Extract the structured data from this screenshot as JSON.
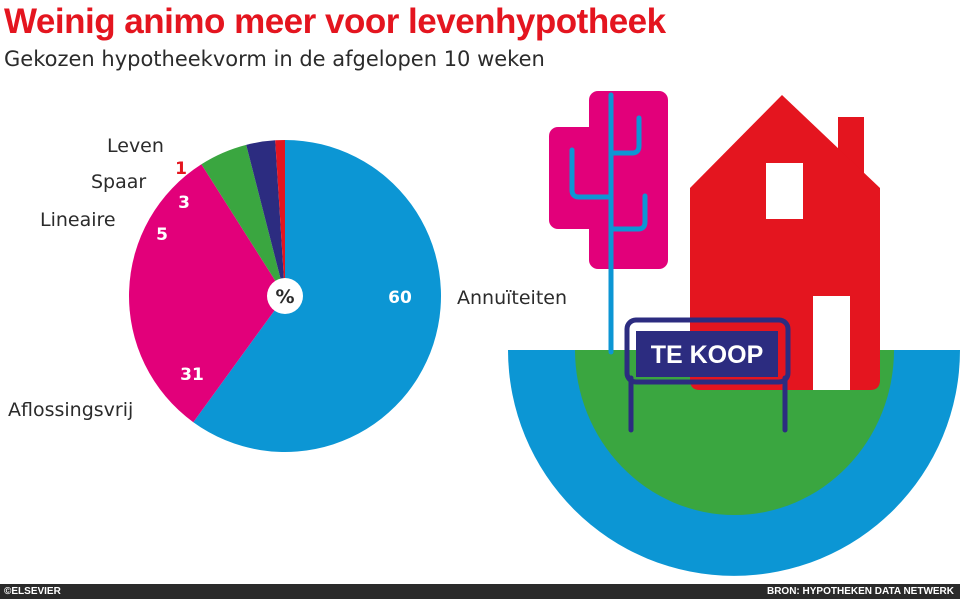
{
  "title": "Weinig animo meer voor levenhypotheek",
  "subtitle": "Gekozen hypotheekvorm in de afgelopen 10 weken",
  "chart_data": {
    "type": "pie",
    "unit_label": "%",
    "slices": [
      {
        "name": "Annuïteiten",
        "value": 60,
        "color": "#0c96d4",
        "text_color": "#ffffff"
      },
      {
        "name": "Aflossingsvrij",
        "value": 31,
        "color": "#e2007a",
        "text_color": "#ffffff"
      },
      {
        "name": "Lineaire",
        "value": 5,
        "color": "#3aa640",
        "text_color": "#ffffff"
      },
      {
        "name": "Spaar",
        "value": 3,
        "color": "#2c2c80",
        "text_color": "#ffffff"
      },
      {
        "name": "Leven",
        "value": 1,
        "color": "#e4151f",
        "text_color": "#e4151f"
      }
    ]
  },
  "sign": {
    "text": "TE KOOP"
  },
  "footer": {
    "credit": "©ELSEVIER",
    "source": "BRON: HYPOTHEKEN DATA NETWERK"
  },
  "colors": {
    "red": "#e4151f",
    "blue": "#0c96d4",
    "green": "#3aa640",
    "magenta": "#e2007a",
    "navy": "#2c2c80"
  }
}
